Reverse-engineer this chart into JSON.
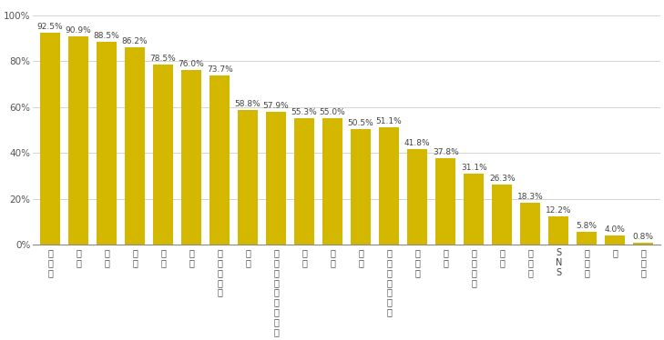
{
  "categories": [
    "食べ物",
    "住居",
    "衣服",
    "お金",
    "健康",
    "仕事",
    "十分な睡眠",
    "休み",
    "インターネット回線",
    "安全",
    "友人",
    "趣味",
    "スマートフォン",
    "テレビ",
    "会話",
    "思いやり",
    "恋人",
    "正直さ",
    "SNS",
    "ペット",
    "嘘",
    "その他"
  ],
  "values": [
    92.5,
    90.9,
    88.5,
    86.2,
    78.5,
    76.0,
    73.7,
    58.8,
    57.9,
    55.3,
    55.0,
    50.5,
    51.1,
    41.8,
    37.8,
    31.1,
    26.3,
    18.3,
    12.2,
    5.8,
    4.0,
    0.8
  ],
  "bar_color": "#D4B800",
  "background_color": "#FFFFFF",
  "ylabel_ticks": [
    "0%",
    "20%",
    "40%",
    "60%",
    "80%",
    "100%"
  ],
  "ytick_values": [
    0,
    20,
    40,
    60,
    80,
    100
  ],
  "ylim": [
    0,
    105
  ],
  "label_fontsize": 6.5,
  "tick_fontsize": 7.5,
  "xtick_fontsize": 7.0,
  "bar_width": 0.7
}
